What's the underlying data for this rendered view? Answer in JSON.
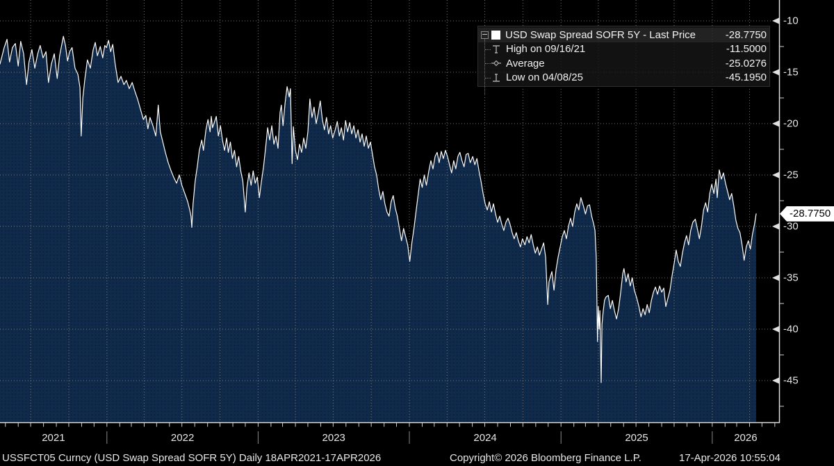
{
  "window": {
    "background": "#000000"
  },
  "legend": {
    "toggle_icon": "minus-box",
    "series": {
      "swatch_color": "#ffffff",
      "label": "USD Swap Spread SOFR 5Y - Last Price",
      "value": "-28.7750"
    },
    "stats_rows": [
      {
        "icon": "high-marker",
        "label": "High on 09/16/21",
        "value": "-11.5000"
      },
      {
        "icon": "average-marker",
        "label": "Average",
        "value": "-25.0276"
      },
      {
        "icon": "low-marker",
        "label": "Low on 04/08/25",
        "value": "-45.1950"
      }
    ]
  },
  "y_axis": {
    "tick_labels": [
      "-10",
      "-15",
      "-20",
      "-25",
      "-30",
      "-35",
      "-40",
      "-45"
    ],
    "tick_values": [
      -10,
      -15,
      -20,
      -25,
      -30,
      -35,
      -40,
      -45
    ],
    "minor_tick_values": [
      -12.5,
      -17.5,
      -22.5,
      -27.5,
      -32.5,
      -37.5,
      -42.5,
      -47.5
    ],
    "last_price_label": "-28.7750"
  },
  "x_axis": {
    "year_labels": [
      "2021",
      "2022",
      "2023",
      "2024",
      "2025",
      "2026"
    ],
    "start_date": "2021-04-18",
    "end_date": "2026-04-17"
  },
  "footer": {
    "security": "USSFCT05 Curncy (USD Swap Spread SOFR 5Y) Daily 18APR2021-17APR2026",
    "copyright": "Copyright© 2026 Bloomberg Finance L.P.",
    "timestamp": "17-Apr-2026 10:55:04"
  },
  "colors": {
    "line": "#ffffff",
    "area_fill": "#0f2a4a",
    "area_dot": "#0a1d35",
    "grid": "#999999",
    "axis": "#e0e0e0",
    "tick": "#cfcfcf",
    "separator": "#8a8a8a",
    "label": "#e6e6e6",
    "flag_bg": "#ffffff",
    "flag_text": "#000000"
  },
  "chart_data": {
    "type": "area",
    "title": "USD Swap Spread SOFR 5Y - Last Price",
    "x_range": [
      "18APR2021",
      "17APR2026"
    ],
    "x_unit": "days since 2021-04-18",
    "ylim": [
      -49.1,
      -8.0
    ],
    "y_ticks": [
      -10,
      -15,
      -20,
      -25,
      -30,
      -35,
      -40,
      -45
    ],
    "grid": true,
    "legend_position": "top-right",
    "stats": {
      "last": -28.775,
      "high": -11.5,
      "high_date": "09/16/21",
      "average": -25.0276,
      "low": -45.195,
      "low_date": "04/08/25"
    },
    "points": [
      [
        0,
        -14.2
      ],
      [
        10,
        -12.6
      ],
      [
        17,
        -11.8
      ],
      [
        23,
        -14.0
      ],
      [
        30,
        -12.6
      ],
      [
        37,
        -12.2
      ],
      [
        44,
        -14.4
      ],
      [
        50,
        -12.0
      ],
      [
        57,
        -13.2
      ],
      [
        64,
        -16.2
      ],
      [
        70,
        -14.0
      ],
      [
        77,
        -12.8
      ],
      [
        84,
        -14.6
      ],
      [
        91,
        -13.2
      ],
      [
        97,
        -12.4
      ],
      [
        104,
        -13.6
      ],
      [
        111,
        -13.0
      ],
      [
        117,
        -16.0
      ],
      [
        124,
        -14.2
      ],
      [
        131,
        -13.2
      ],
      [
        138,
        -15.6
      ],
      [
        144,
        -13.4
      ],
      [
        153,
        -11.5
      ],
      [
        158,
        -12.4
      ],
      [
        163,
        -13.9
      ],
      [
        168,
        -13.0
      ],
      [
        174,
        -12.6
      ],
      [
        181,
        -14.6
      ],
      [
        188,
        -15.2
      ],
      [
        193,
        -16.5
      ],
      [
        196,
        -21.2
      ],
      [
        200,
        -17.5
      ],
      [
        205,
        -15.6
      ],
      [
        211,
        -13.8
      ],
      [
        218,
        -14.6
      ],
      [
        225,
        -12.8
      ],
      [
        230,
        -12.1
      ],
      [
        235,
        -13.4
      ],
      [
        242,
        -12.5
      ],
      [
        248,
        -13.6
      ],
      [
        253,
        -12.4
      ],
      [
        257,
        -12.6
      ],
      [
        262,
        -11.9
      ],
      [
        267,
        -13.0
      ],
      [
        272,
        -12.3
      ],
      [
        278,
        -14.2
      ],
      [
        285,
        -16.0
      ],
      [
        292,
        -15.4
      ],
      [
        299,
        -16.2
      ],
      [
        305,
        -15.8
      ],
      [
        312,
        -16.6
      ],
      [
        319,
        -16.0
      ],
      [
        325,
        -16.8
      ],
      [
        332,
        -17.6
      ],
      [
        339,
        -18.6
      ],
      [
        346,
        -19.6
      ],
      [
        352,
        -19.2
      ],
      [
        357,
        -20.5
      ],
      [
        362,
        -19.4
      ],
      [
        369,
        -20.2
      ],
      [
        376,
        -21.2
      ],
      [
        382,
        -18.2
      ],
      [
        387,
        -20.8
      ],
      [
        393,
        -21.8
      ],
      [
        399,
        -22.8
      ],
      [
        406,
        -23.8
      ],
      [
        413,
        -24.6
      ],
      [
        419,
        -25.2
      ],
      [
        426,
        -25.8
      ],
      [
        433,
        -25.0
      ],
      [
        439,
        -26.0
      ],
      [
        446,
        -26.8
      ],
      [
        453,
        -27.6
      ],
      [
        458,
        -28.4
      ],
      [
        461,
        -29.0
      ],
      [
        463,
        -30.1
      ],
      [
        466,
        -27.8
      ],
      [
        471,
        -25.6
      ],
      [
        476,
        -24.2
      ],
      [
        481,
        -22.6
      ],
      [
        487,
        -21.6
      ],
      [
        491,
        -22.6
      ],
      [
        497,
        -20.6
      ],
      [
        502,
        -19.6
      ],
      [
        507,
        -20.8
      ],
      [
        510,
        -19.3
      ],
      [
        513,
        -20.4
      ],
      [
        518,
        -19.8
      ],
      [
        522,
        -19.3
      ],
      [
        527,
        -21.2
      ],
      [
        532,
        -20.2
      ],
      [
        537,
        -21.6
      ],
      [
        542,
        -22.6
      ],
      [
        547,
        -21.4
      ],
      [
        551,
        -22.8
      ],
      [
        556,
        -21.8
      ],
      [
        561,
        -23.4
      ],
      [
        566,
        -22.6
      ],
      [
        571,
        -24.2
      ],
      [
        576,
        -23.2
      ],
      [
        581,
        -24.6
      ],
      [
        586,
        -25.6
      ],
      [
        592,
        -28.6
      ],
      [
        596,
        -26.2
      ],
      [
        601,
        -24.8
      ],
      [
        606,
        -26.0
      ],
      [
        611,
        -24.6
      ],
      [
        616,
        -25.8
      ],
      [
        621,
        -25.2
      ],
      [
        626,
        -27.2
      ],
      [
        631,
        -25.6
      ],
      [
        636,
        -24.2
      ],
      [
        641,
        -22.4
      ],
      [
        646,
        -20.4
      ],
      [
        651,
        -21.6
      ],
      [
        656,
        -20.2
      ],
      [
        661,
        -22.0
      ],
      [
        666,
        -21.2
      ],
      [
        671,
        -22.4
      ],
      [
        676,
        -18.9
      ],
      [
        679,
        -18.2
      ],
      [
        683,
        -20.2
      ],
      [
        688,
        -18.0
      ],
      [
        693,
        -16.4
      ],
      [
        698,
        -17.4
      ],
      [
        701,
        -16.6
      ],
      [
        705,
        -23.9
      ],
      [
        708,
        -20.3
      ],
      [
        713,
        -22.6
      ],
      [
        718,
        -23.5
      ],
      [
        723,
        -22.0
      ],
      [
        728,
        -22.8
      ],
      [
        733,
        -21.4
      ],
      [
        738,
        -22.4
      ],
      [
        743,
        -20.8
      ],
      [
        748,
        -17.6
      ],
      [
        753,
        -19.4
      ],
      [
        758,
        -18.4
      ],
      [
        763,
        -20.0
      ],
      [
        768,
        -19.0
      ],
      [
        773,
        -17.8
      ],
      [
        778,
        -19.6
      ],
      [
        783,
        -20.6
      ],
      [
        788,
        -19.4
      ],
      [
        793,
        -21.0
      ],
      [
        798,
        -20.2
      ],
      [
        803,
        -21.4
      ],
      [
        809,
        -20.6
      ],
      [
        814,
        -19.8
      ],
      [
        819,
        -21.2
      ],
      [
        824,
        -20.4
      ],
      [
        829,
        -21.6
      ],
      [
        834,
        -19.7
      ],
      [
        839,
        -20.8
      ],
      [
        844,
        -19.9
      ],
      [
        849,
        -21.0
      ],
      [
        854,
        -20.2
      ],
      [
        859,
        -21.4
      ],
      [
        864,
        -20.6
      ],
      [
        869,
        -21.8
      ],
      [
        874,
        -21.0
      ],
      [
        879,
        -22.2
      ],
      [
        884,
        -21.2
      ],
      [
        889,
        -22.4
      ],
      [
        894,
        -21.8
      ],
      [
        899,
        -23.0
      ],
      [
        904,
        -24.2
      ],
      [
        909,
        -25.0
      ],
      [
        914,
        -26.4
      ],
      [
        919,
        -27.4
      ],
      [
        924,
        -26.6
      ],
      [
        929,
        -27.8
      ],
      [
        934,
        -28.6
      ],
      [
        939,
        -29.0
      ],
      [
        944,
        -27.6
      ],
      [
        949,
        -27.0
      ],
      [
        954,
        -28.2
      ],
      [
        959,
        -29.0
      ],
      [
        964,
        -30.2
      ],
      [
        969,
        -31.4
      ],
      [
        974,
        -30.2
      ],
      [
        979,
        -31.0
      ],
      [
        984,
        -31.8
      ],
      [
        989,
        -33.4
      ],
      [
        994,
        -31.6
      ],
      [
        999,
        -30.2
      ],
      [
        1004,
        -28.6
      ],
      [
        1009,
        -27.0
      ],
      [
        1014,
        -25.4
      ],
      [
        1019,
        -26.2
      ],
      [
        1024,
        -25.0
      ],
      [
        1029,
        -26.0
      ],
      [
        1035,
        -24.6
      ],
      [
        1040,
        -23.6
      ],
      [
        1045,
        -24.4
      ],
      [
        1050,
        -23.2
      ],
      [
        1055,
        -22.8
      ],
      [
        1060,
        -23.8
      ],
      [
        1065,
        -22.7
      ],
      [
        1070,
        -23.4
      ],
      [
        1075,
        -22.6
      ],
      [
        1080,
        -23.2
      ],
      [
        1085,
        -24.0
      ],
      [
        1090,
        -24.8
      ],
      [
        1095,
        -23.6
      ],
      [
        1100,
        -24.4
      ],
      [
        1105,
        -23.2
      ],
      [
        1110,
        -22.8
      ],
      [
        1115,
        -23.6
      ],
      [
        1120,
        -24.2
      ],
      [
        1125,
        -23.0
      ],
      [
        1130,
        -22.9
      ],
      [
        1135,
        -23.8
      ],
      [
        1141,
        -23.2
      ],
      [
        1146,
        -24.0
      ],
      [
        1151,
        -23.4
      ],
      [
        1156,
        -24.6
      ],
      [
        1161,
        -25.6
      ],
      [
        1166,
        -26.8
      ],
      [
        1171,
        -27.8
      ],
      [
        1176,
        -28.4
      ],
      [
        1181,
        -27.6
      ],
      [
        1186,
        -28.6
      ],
      [
        1191,
        -27.8
      ],
      [
        1196,
        -28.8
      ],
      [
        1201,
        -29.6
      ],
      [
        1206,
        -29.0
      ],
      [
        1211,
        -29.8
      ],
      [
        1216,
        -30.4
      ],
      [
        1221,
        -29.6
      ],
      [
        1226,
        -29.2
      ],
      [
        1231,
        -29.8
      ],
      [
        1236,
        -30.6
      ],
      [
        1241,
        -31.2
      ],
      [
        1246,
        -30.6
      ],
      [
        1251,
        -31.4
      ],
      [
        1256,
        -32.0
      ],
      [
        1261,
        -31.2
      ],
      [
        1267,
        -31.8
      ],
      [
        1272,
        -31.0
      ],
      [
        1277,
        -31.6
      ],
      [
        1282,
        -30.8
      ],
      [
        1287,
        -31.8
      ],
      [
        1292,
        -32.6
      ],
      [
        1297,
        -32.0
      ],
      [
        1302,
        -32.8
      ],
      [
        1307,
        -32.2
      ],
      [
        1312,
        -31.6
      ],
      [
        1317,
        -33.0
      ],
      [
        1322,
        -37.6
      ],
      [
        1325,
        -35.4
      ],
      [
        1329,
        -34.8
      ],
      [
        1332,
        -34.4
      ],
      [
        1337,
        -36.2
      ],
      [
        1342,
        -34.2
      ],
      [
        1347,
        -33.0
      ],
      [
        1352,
        -32.0
      ],
      [
        1357,
        -31.0
      ],
      [
        1362,
        -30.4
      ],
      [
        1367,
        -31.2
      ],
      [
        1372,
        -30.0
      ],
      [
        1377,
        -29.2
      ],
      [
        1382,
        -30.0
      ],
      [
        1387,
        -28.6
      ],
      [
        1392,
        -27.8
      ],
      [
        1397,
        -28.4
      ],
      [
        1402,
        -27.2
      ],
      [
        1408,
        -28.0
      ],
      [
        1413,
        -28.8
      ],
      [
        1418,
        -28.0
      ],
      [
        1423,
        -27.9
      ],
      [
        1428,
        -29.0
      ],
      [
        1433,
        -29.8
      ],
      [
        1436,
        -30.4
      ],
      [
        1439,
        -33.0
      ],
      [
        1442,
        -41.2
      ],
      [
        1444,
        -37.8
      ],
      [
        1446,
        -40.0
      ],
      [
        1448,
        -38.2
      ],
      [
        1451,
        -45.195
      ],
      [
        1453,
        -39.5
      ],
      [
        1456,
        -38.2
      ],
      [
        1459,
        -37.2
      ],
      [
        1462,
        -36.9
      ],
      [
        1468,
        -36.7
      ],
      [
        1473,
        -38.0
      ],
      [
        1478,
        -37.2
      ],
      [
        1483,
        -38.2
      ],
      [
        1488,
        -39.0
      ],
      [
        1493,
        -38.0
      ],
      [
        1498,
        -36.4
      ],
      [
        1503,
        -34.6
      ],
      [
        1506,
        -34.1
      ],
      [
        1511,
        -35.4
      ],
      [
        1516,
        -34.6
      ],
      [
        1521,
        -35.8
      ],
      [
        1526,
        -35.0
      ],
      [
        1531,
        -36.2
      ],
      [
        1537,
        -37.0
      ],
      [
        1542,
        -37.8
      ],
      [
        1547,
        -38.8
      ],
      [
        1552,
        -38.0
      ],
      [
        1557,
        -38.6
      ],
      [
        1562,
        -37.6
      ],
      [
        1567,
        -38.4
      ],
      [
        1572,
        -37.2
      ],
      [
        1577,
        -36.4
      ],
      [
        1582,
        -35.9
      ],
      [
        1587,
        -36.6
      ],
      [
        1592,
        -35.8
      ],
      [
        1597,
        -36.4
      ],
      [
        1602,
        -36.0
      ],
      [
        1607,
        -37.8
      ],
      [
        1612,
        -37.0
      ],
      [
        1617,
        -36.2
      ],
      [
        1622,
        -34.8
      ],
      [
        1627,
        -33.6
      ],
      [
        1632,
        -32.3
      ],
      [
        1637,
        -33.4
      ],
      [
        1642,
        -33.9
      ],
      [
        1647,
        -32.6
      ],
      [
        1652,
        -31.6
      ],
      [
        1657,
        -30.9
      ],
      [
        1662,
        -31.8
      ],
      [
        1667,
        -30.4
      ],
      [
        1672,
        -29.6
      ],
      [
        1678,
        -29.3
      ],
      [
        1683,
        -30.2
      ],
      [
        1688,
        -31.2
      ],
      [
        1693,
        -30.0
      ],
      [
        1698,
        -28.4
      ],
      [
        1703,
        -27.7
      ],
      [
        1708,
        -28.6
      ],
      [
        1713,
        -26.8
      ],
      [
        1718,
        -25.9
      ],
      [
        1723,
        -26.8
      ],
      [
        1728,
        -25.4
      ],
      [
        1731,
        -27.2
      ],
      [
        1736,
        -24.5
      ],
      [
        1741,
        -25.4
      ],
      [
        1746,
        -24.8
      ],
      [
        1751,
        -25.8
      ],
      [
        1756,
        -26.6
      ],
      [
        1761,
        -27.4
      ],
      [
        1766,
        -26.8
      ],
      [
        1771,
        -28.0
      ],
      [
        1776,
        -29.4
      ],
      [
        1781,
        -30.2
      ],
      [
        1786,
        -30.6
      ],
      [
        1791,
        -31.8
      ],
      [
        1796,
        -33.3
      ],
      [
        1801,
        -32.0
      ],
      [
        1806,
        -31.4
      ],
      [
        1811,
        -32.2
      ],
      [
        1816,
        -30.8
      ],
      [
        1821,
        -29.8
      ],
      [
        1825,
        -28.775
      ]
    ]
  }
}
